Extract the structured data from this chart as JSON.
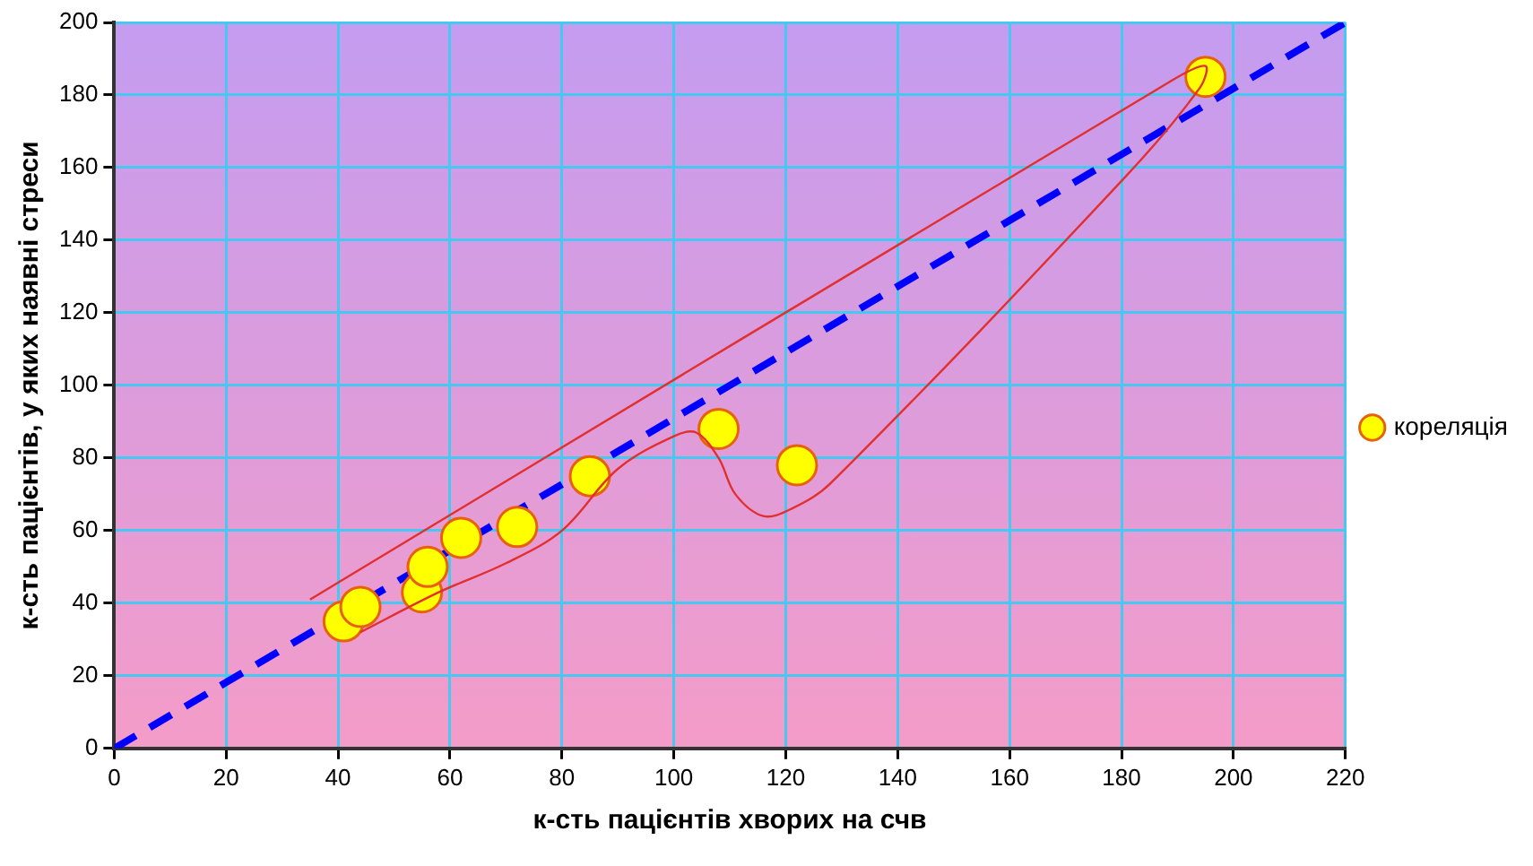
{
  "chart_data": {
    "type": "scatter",
    "xlabel": "к-сть пацієнтів хворих на счв",
    "ylabel": "к-сть пацієнтів, у яких наявні стреси",
    "series": [
      {
        "name": "кореляція",
        "type": "scatter",
        "color": "#ffff00",
        "marker": "circle",
        "x": [
          41,
          44,
          55,
          56,
          62,
          72,
          85,
          108,
          122,
          195
        ],
        "values": [
          35,
          39,
          43,
          50,
          58,
          61,
          75,
          88,
          78,
          185
        ]
      },
      {
        "type": "line",
        "color": "#0000ff",
        "line_style": "dashed",
        "marker": "none",
        "x": [
          0,
          220
        ],
        "values": [
          0,
          200
        ]
      },
      {
        "type": "line",
        "color": "#e03030",
        "line_style": "solid",
        "marker": "none",
        "x": [
          35,
          189,
          195,
          194,
          181,
          128,
          121,
          116,
          111,
          108,
          104,
          100,
          90,
          80,
          70,
          58,
          44
        ],
        "values": [
          41,
          184,
          188,
          182,
          158,
          73,
          66,
          64,
          70,
          80,
          87,
          86,
          77,
          60,
          51,
          43,
          32
        ]
      }
    ],
    "xlim": [
      0,
      220
    ],
    "xticks": [
      0,
      20,
      40,
      60,
      80,
      100,
      120,
      140,
      160,
      180,
      200,
      220
    ],
    "ylim": [
      0,
      200
    ],
    "yticks": [
      0,
      20,
      40,
      60,
      80,
      100,
      120,
      140,
      160,
      180,
      200
    ],
    "grid": true,
    "legend": "right"
  }
}
